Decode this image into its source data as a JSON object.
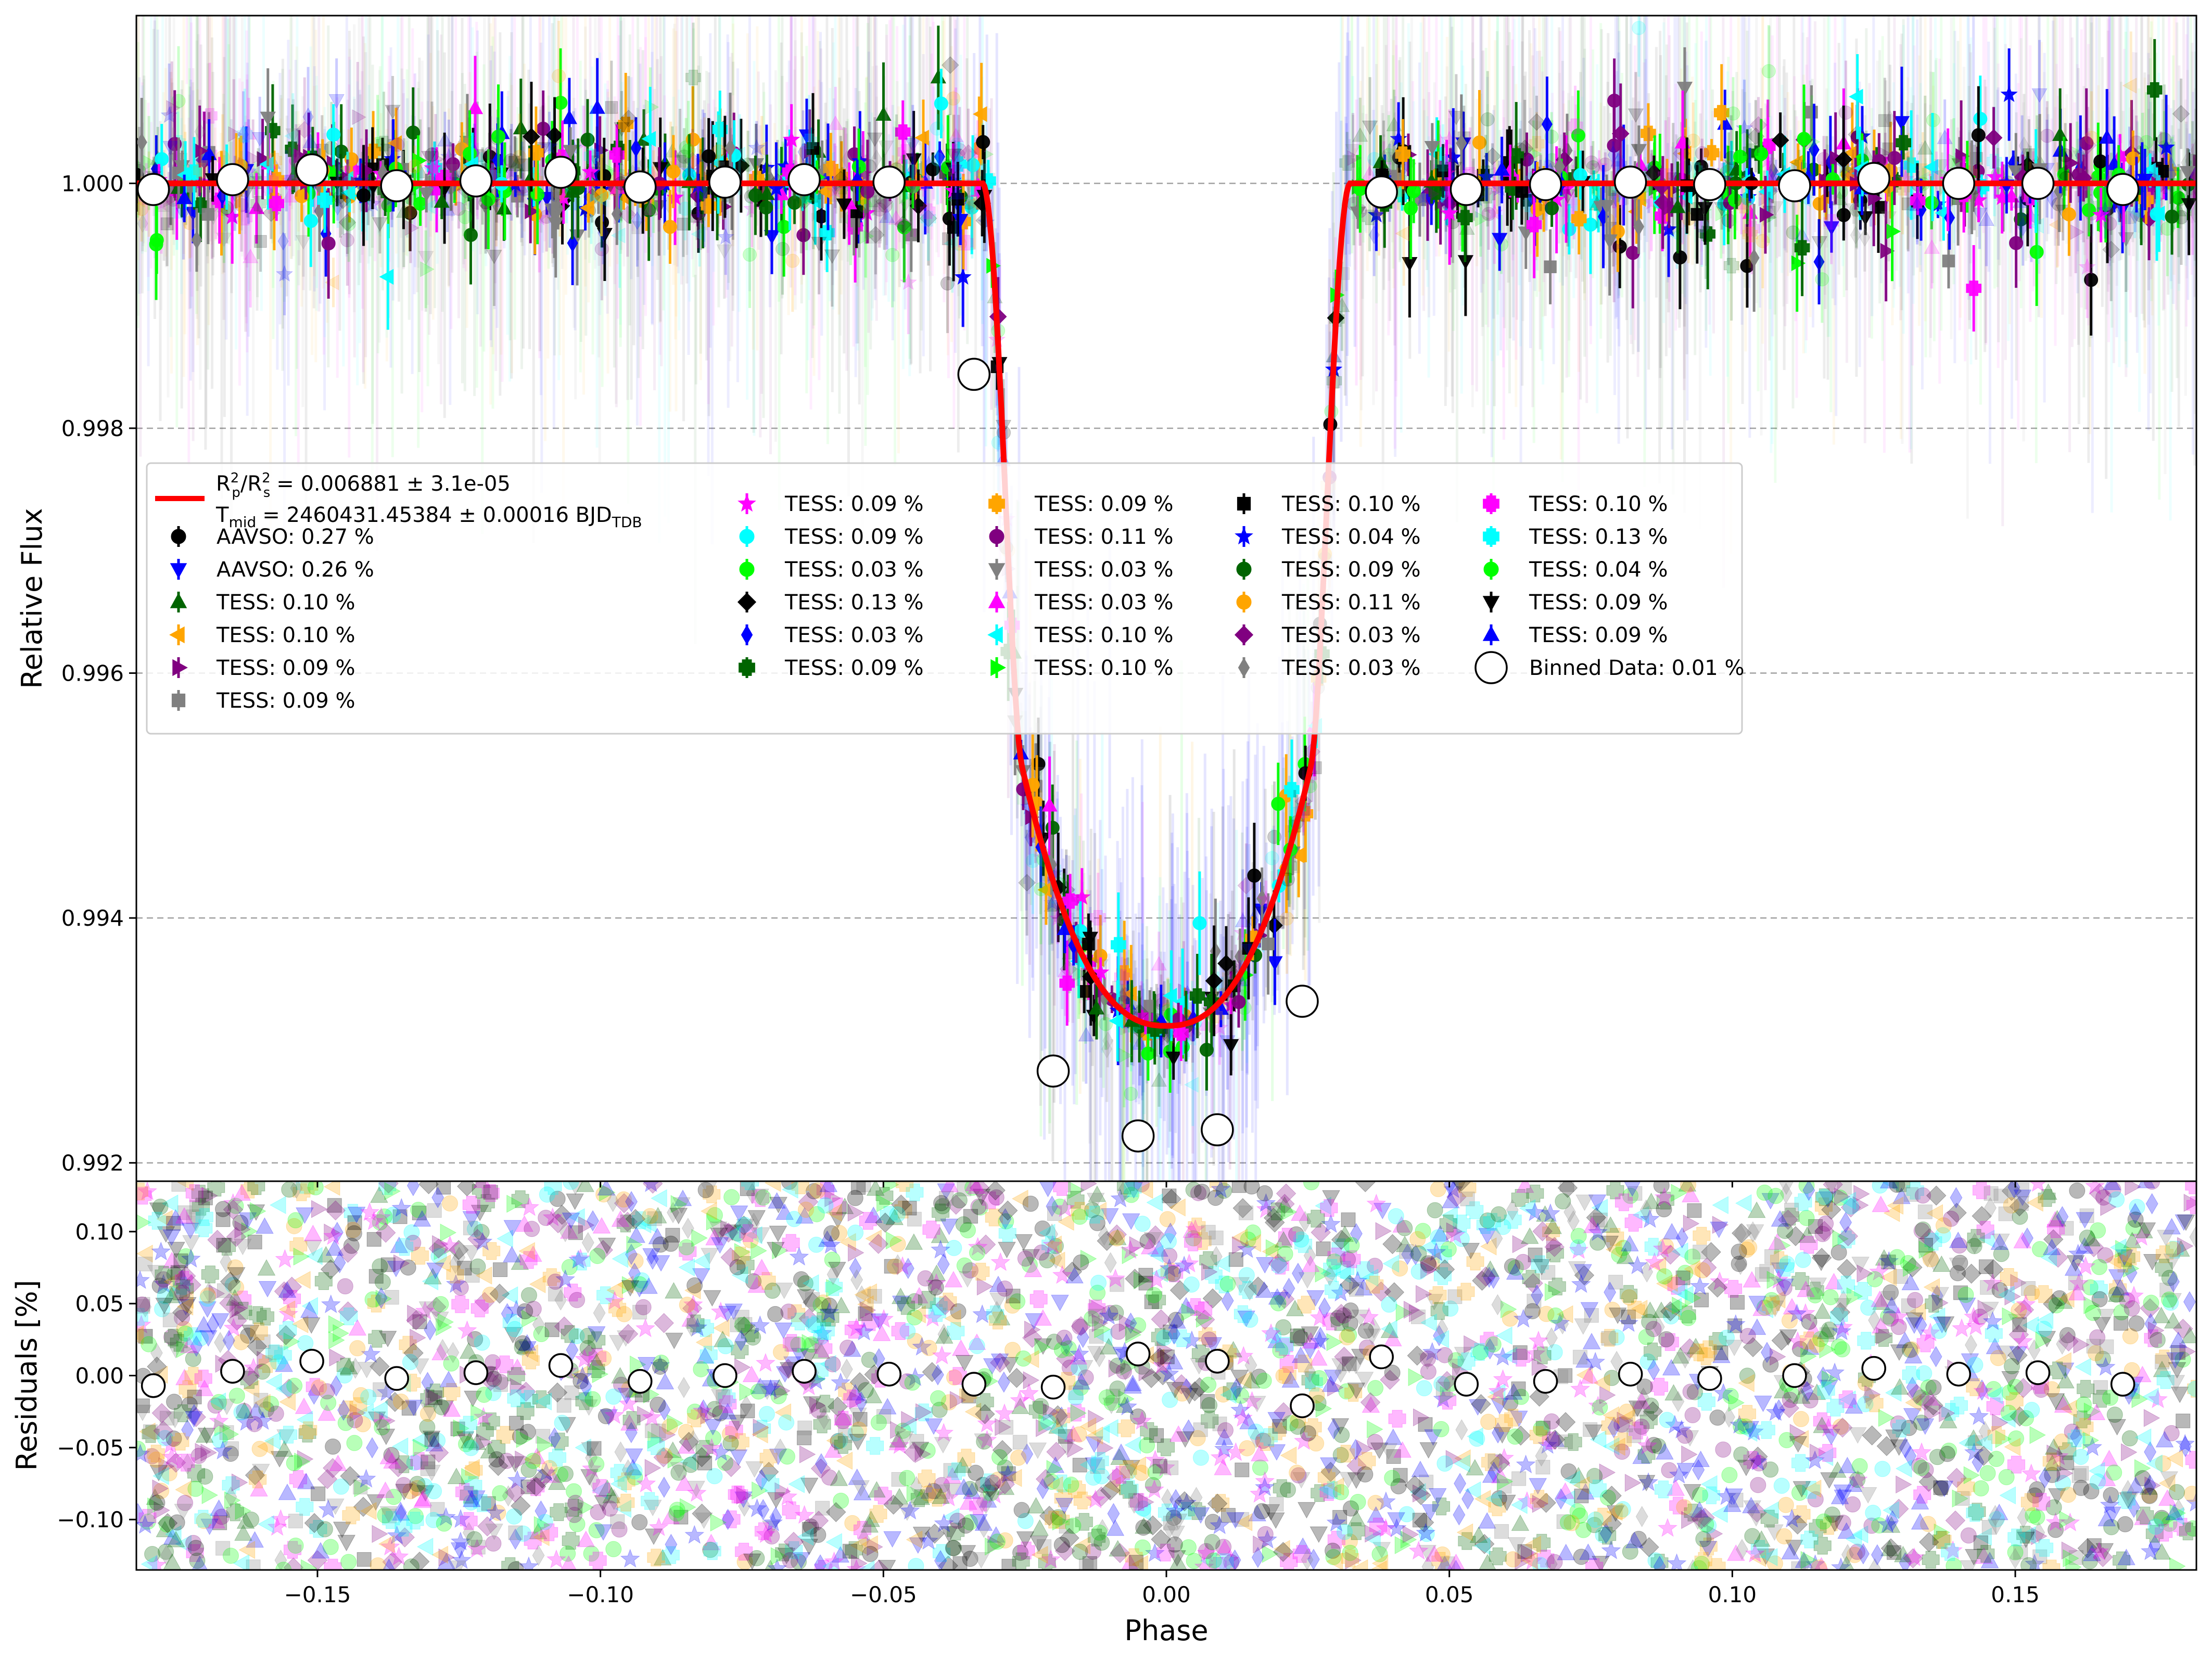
{
  "chart_data": [
    {
      "panel": "main",
      "type": "scatter",
      "xlabel": "Phase",
      "ylabel": "Relative Flux",
      "xlim": [
        -0.182,
        0.182
      ],
      "ylim": [
        0.99185,
        1.00137
      ],
      "yticks": [
        "0.992",
        "0.994",
        "0.996",
        "0.998",
        "1.000"
      ],
      "ytick_values": [
        0.992,
        0.994,
        0.996,
        0.998,
        1.0
      ],
      "grid": "horizontal-dashed",
      "legend_placement": "center-left",
      "model": {
        "name": "transit-model",
        "color": "#ff0000",
        "label_line1_prefix": "R",
        "label_line1": "= 0.006881 ± 3.1e-05",
        "label_line2_prefix": "T",
        "label_line2_sub": "mid",
        "label_line2": "= 2460431.45384 ± 0.00016 BJD",
        "label_line2_unit_sub": "TDB",
        "depth": 0.006881,
        "t_mid_phase": 0.0
      },
      "binned": {
        "name": "Binned Data: 0.01 %",
        "x": [
          -0.179,
          -0.165,
          -0.151,
          -0.136,
          -0.122,
          -0.107,
          -0.093,
          -0.078,
          -0.064,
          -0.049,
          -0.034,
          -0.02,
          -0.005,
          0.009,
          0.024,
          0.038,
          0.053,
          0.067,
          0.082,
          0.096,
          0.111,
          0.125,
          0.14,
          0.154,
          0.169
        ],
        "y": [
          0.99995,
          1.00003,
          1.00011,
          0.99998,
          1.00002,
          1.00009,
          0.99997,
          1.00001,
          1.00003,
          1.00001,
          0.99844,
          0.99275,
          0.99222,
          0.99227,
          0.99332,
          0.99993,
          0.99995,
          0.99999,
          1.00001,
          0.99999,
          0.99998,
          1.00004,
          1.0,
          1.0,
          0.99995
        ]
      },
      "series": [
        {
          "name": "AAVSO: 0.27 %",
          "color": "#000000",
          "marker": "circle"
        },
        {
          "name": "AAVSO: 0.26 %",
          "color": "#0000ff",
          "marker": "triangle-down"
        },
        {
          "name": "TESS: 0.10 %",
          "color": "#006400",
          "marker": "triangle-up"
        },
        {
          "name": "TESS: 0.10 %",
          "color": "#ffa500",
          "marker": "triangle-left"
        },
        {
          "name": "TESS: 0.09 %",
          "color": "#800080",
          "marker": "triangle-right"
        },
        {
          "name": "TESS: 0.09 %",
          "color": "#808080",
          "marker": "square"
        },
        {
          "name": "TESS: 0.09 %",
          "color": "#ff00ff",
          "marker": "star"
        },
        {
          "name": "TESS: 0.09 %",
          "color": "#00ffff",
          "marker": "circle"
        },
        {
          "name": "TESS: 0.03 %",
          "color": "#00ff00",
          "marker": "circle"
        },
        {
          "name": "TESS: 0.13 %",
          "color": "#000000",
          "marker": "diamond"
        },
        {
          "name": "TESS: 0.03 %",
          "color": "#0000ff",
          "marker": "thin-diamond"
        },
        {
          "name": "TESS: 0.09 %",
          "color": "#006400",
          "marker": "plus"
        },
        {
          "name": "TESS: 0.09 %",
          "color": "#ffa500",
          "marker": "plus"
        },
        {
          "name": "TESS: 0.11 %",
          "color": "#800080",
          "marker": "circle"
        },
        {
          "name": "TESS: 0.03 %",
          "color": "#808080",
          "marker": "triangle-down"
        },
        {
          "name": "TESS: 0.03 %",
          "color": "#ff00ff",
          "marker": "triangle-up"
        },
        {
          "name": "TESS: 0.10 %",
          "color": "#00ffff",
          "marker": "triangle-left"
        },
        {
          "name": "TESS: 0.10 %",
          "color": "#00ff00",
          "marker": "triangle-right"
        },
        {
          "name": "TESS: 0.10 %",
          "color": "#000000",
          "marker": "square"
        },
        {
          "name": "TESS: 0.04 %",
          "color": "#0000ff",
          "marker": "star"
        },
        {
          "name": "TESS: 0.09 %",
          "color": "#006400",
          "marker": "circle"
        },
        {
          "name": "TESS: 0.11 %",
          "color": "#ffa500",
          "marker": "circle"
        },
        {
          "name": "TESS: 0.03 %",
          "color": "#800080",
          "marker": "diamond"
        },
        {
          "name": "TESS: 0.03 %",
          "color": "#808080",
          "marker": "thin-diamond"
        },
        {
          "name": "TESS: 0.10 %",
          "color": "#ff00ff",
          "marker": "plus"
        },
        {
          "name": "TESS: 0.13 %",
          "color": "#00ffff",
          "marker": "plus"
        },
        {
          "name": "TESS: 0.04 %",
          "color": "#00ff00",
          "marker": "circle"
        },
        {
          "name": "TESS: 0.09 %",
          "color": "#000000",
          "marker": "triangle-down"
        },
        {
          "name": "TESS: 0.09 %",
          "color": "#0000ff",
          "marker": "triangle-up"
        }
      ]
    },
    {
      "panel": "residuals",
      "type": "scatter",
      "xlabel": "Phase",
      "ylabel": "Residuals [%]",
      "xlim": [
        -0.182,
        0.182
      ],
      "ylim": [
        -0.135,
        0.135
      ],
      "xticks": [
        "−0.15",
        "−0.10",
        "−0.05",
        "0.00",
        "0.05",
        "0.10",
        "0.15"
      ],
      "xtick_values": [
        -0.15,
        -0.1,
        -0.05,
        0.0,
        0.05,
        0.1,
        0.15
      ],
      "yticks": [
        "−0.10",
        "−0.05",
        "0.00",
        "0.05",
        "0.10"
      ],
      "ytick_values": [
        -0.1,
        -0.05,
        0.0,
        0.05,
        0.1
      ],
      "binned": {
        "x": [
          -0.179,
          -0.165,
          -0.151,
          -0.136,
          -0.122,
          -0.107,
          -0.093,
          -0.078,
          -0.064,
          -0.049,
          -0.034,
          -0.02,
          -0.005,
          0.009,
          0.024,
          0.038,
          0.053,
          0.067,
          0.082,
          0.096,
          0.111,
          0.125,
          0.14,
          0.154,
          0.169
        ],
        "y": [
          -0.007,
          0.003,
          0.01,
          -0.002,
          0.002,
          0.007,
          -0.004,
          0.0,
          0.003,
          0.001,
          -0.006,
          -0.008,
          0.015,
          0.01,
          -0.021,
          0.013,
          -0.006,
          -0.004,
          0.001,
          -0.002,
          0.0,
          0.005,
          0.001,
          0.002,
          -0.006
        ]
      }
    }
  ]
}
